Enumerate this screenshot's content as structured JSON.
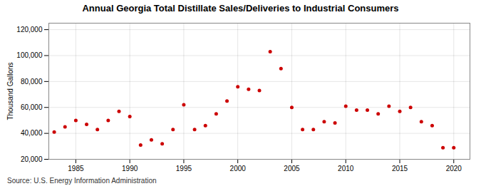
{
  "chart_data": {
    "type": "scatter",
    "title": "Annual Georgia Total Distillate Sales/Deliveries to Industrial Consumers",
    "ylabel": "Thousand Gallons",
    "source": "Source: U.S. Energy Information Administration",
    "x": [
      1983,
      1984,
      1985,
      1986,
      1987,
      1988,
      1989,
      1990,
      1991,
      1992,
      1993,
      1994,
      1995,
      1996,
      1997,
      1998,
      1999,
      2000,
      2001,
      2002,
      2003,
      2004,
      2005,
      2006,
      2007,
      2008,
      2009,
      2010,
      2011,
      2012,
      2013,
      2014,
      2015,
      2016,
      2017,
      2018,
      2019,
      2020
    ],
    "values": [
      41000,
      45000,
      50000,
      47000,
      43000,
      50000,
      57000,
      53000,
      31000,
      35000,
      32000,
      43000,
      62000,
      43000,
      46000,
      55000,
      65000,
      76000,
      74000,
      73000,
      103000,
      90000,
      60000,
      43000,
      43000,
      49000,
      48000,
      61000,
      58000,
      58000,
      55000,
      61000,
      57000,
      60000,
      49000,
      46000,
      29000,
      29000
    ],
    "color": "#cc0000",
    "xlim": [
      1982.5,
      2021.5
    ],
    "xticks": [
      1985,
      1990,
      1995,
      2000,
      2005,
      2010,
      2015,
      2020
    ],
    "ylim": [
      20000,
      125000
    ],
    "yticks": [
      {
        "value": 20000,
        "label": "20,000"
      },
      {
        "value": 40000,
        "label": "40,000"
      },
      {
        "value": 60000,
        "label": "60,000"
      },
      {
        "value": 80000,
        "label": "80,000"
      },
      {
        "value": 100000,
        "label": "100,000"
      },
      {
        "value": 120000,
        "label": "120,000"
      }
    ],
    "grid": true
  }
}
